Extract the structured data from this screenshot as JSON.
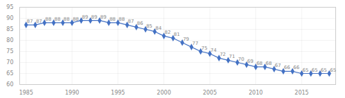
{
  "chart_data": {
    "type": "line",
    "x": [
      1985,
      1986,
      1987,
      1988,
      1989,
      1990,
      1991,
      1992,
      1993,
      1994,
      1995,
      1996,
      1997,
      1998,
      1999,
      2000,
      2001,
      2002,
      2003,
      2004,
      2005,
      2006,
      2007,
      2008,
      2009,
      2010,
      2011,
      2012,
      2013,
      2014,
      2015,
      2016,
      2017,
      2018
    ],
    "values": [
      87,
      87,
      88,
      88,
      88,
      88,
      89,
      89,
      89,
      88,
      88,
      87,
      86,
      85,
      84,
      82,
      81,
      79,
      77,
      75,
      74,
      72,
      71,
      70,
      69,
      68,
      68,
      67,
      66,
      66,
      65,
      65,
      65,
      65
    ],
    "color": "#4472C4",
    "marker": "diamond",
    "xlim": [
      1984.3,
      2018.7
    ],
    "xticks": [
      1985,
      1990,
      1995,
      2000,
      2005,
      2010,
      2015
    ],
    "ylim": [
      60,
      95
    ],
    "yticks": [
      60,
      65,
      70,
      75,
      80,
      85,
      90,
      95
    ],
    "grid": true,
    "data_labels": true
  }
}
